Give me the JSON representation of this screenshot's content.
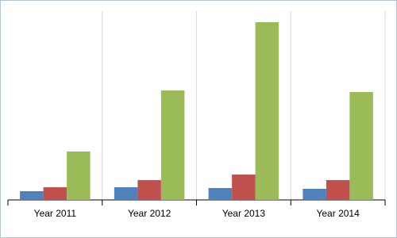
{
  "chart_data": {
    "type": "bar",
    "categories": [
      "Year 2011",
      "Year 2012",
      "Year 2013",
      "Year 2014"
    ],
    "series": [
      {
        "color": "#4f81bd",
        "values": [
          11,
          16,
          15,
          14
        ]
      },
      {
        "color": "#c0504d",
        "values": [
          16,
          25,
          32,
          25
        ]
      },
      {
        "color": "#9bbb59",
        "values": [
          61,
          138,
          224,
          136
        ]
      }
    ],
    "ylim": [
      0,
      240
    ],
    "grid": true
  }
}
